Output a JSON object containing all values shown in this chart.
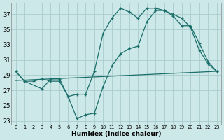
{
  "xlabel": "Humidex (Indice chaleur)",
  "bg_color": "#cce8e8",
  "grid_color": "#aacccc",
  "line_color": "#1a6e6a",
  "xlim": [
    -0.5,
    23.5
  ],
  "ylim": [
    22.5,
    38.5
  ],
  "xticks": [
    0,
    1,
    2,
    3,
    4,
    5,
    6,
    7,
    8,
    9,
    10,
    11,
    12,
    13,
    14,
    15,
    16,
    17,
    18,
    19,
    20,
    21,
    22,
    23
  ],
  "yticks": [
    23,
    25,
    27,
    29,
    31,
    33,
    35,
    37
  ],
  "line1_x": [
    0,
    1,
    2,
    3,
    4,
    5,
    6,
    7,
    8,
    9,
    10,
    11,
    12,
    13,
    14,
    15,
    16,
    17,
    18,
    19,
    20,
    21,
    22,
    23
  ],
  "line1_y": [
    29.5,
    28.2,
    28.2,
    28.5,
    28.2,
    28.2,
    26.2,
    26.5,
    26.5,
    29.5,
    34.5,
    36.5,
    37.8,
    37.3,
    36.5,
    37.8,
    37.8,
    37.5,
    36.8,
    35.5,
    35.5,
    33.2,
    30.8,
    29.5
  ],
  "line2_x": [
    0,
    1,
    3,
    4,
    5,
    6,
    7,
    8,
    9,
    10,
    11,
    12,
    13,
    14,
    15,
    16,
    17,
    18,
    19,
    20,
    21,
    22,
    23
  ],
  "line2_y": [
    29.5,
    28.2,
    27.2,
    28.5,
    28.5,
    26.2,
    23.3,
    23.8,
    24.0,
    27.5,
    30.2,
    31.8,
    32.5,
    32.8,
    36.0,
    37.5,
    37.5,
    37.0,
    36.5,
    35.3,
    32.3,
    30.5,
    29.5
  ],
  "line3_x": [
    0,
    23
  ],
  "line3_y": [
    28.3,
    29.5
  ]
}
